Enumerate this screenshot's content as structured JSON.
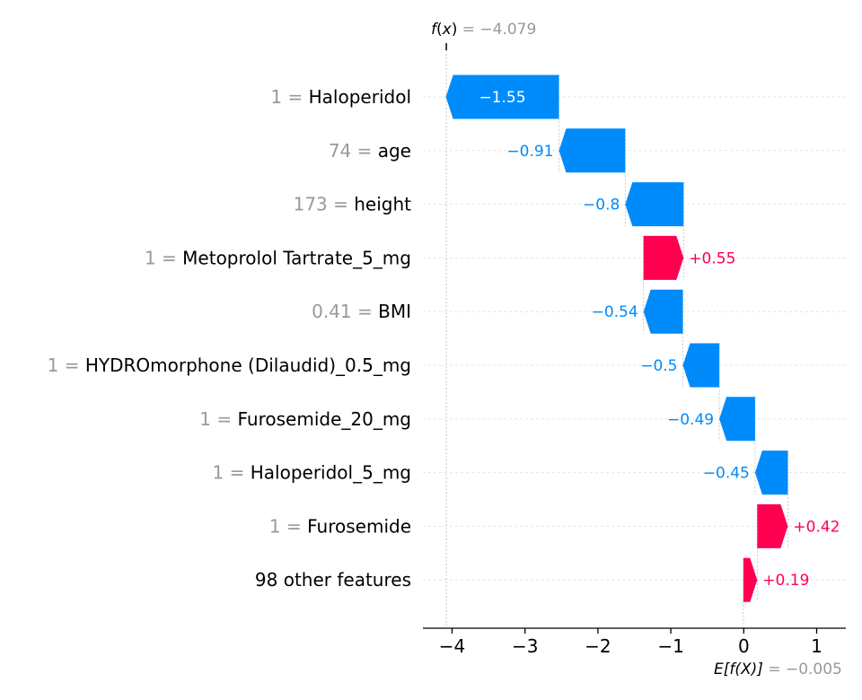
{
  "chart_data": {
    "type": "waterfall",
    "fx_label": {
      "prefix": "f",
      "arg": "x",
      "value_text": "= −4.079"
    },
    "efx_label": {
      "prefix": "E[f(X)]",
      "value_text": "= −0.005"
    },
    "base_value": -0.005,
    "fx_value": -4.079,
    "xlim": [
      -4.4,
      1.4
    ],
    "xticks": [
      -4,
      -3,
      -2,
      -1,
      0,
      1
    ],
    "xtick_labels": [
      "−4",
      "−3",
      "−2",
      "−1",
      "0",
      "1"
    ],
    "features": [
      {
        "value": "1",
        "name": "Haloperidol",
        "contribution": -1.55,
        "label": "−1.55"
      },
      {
        "value": "74",
        "name": "age",
        "contribution": -0.91,
        "label": "−0.91"
      },
      {
        "value": "173",
        "name": "height",
        "contribution": -0.8,
        "label": "−0.8"
      },
      {
        "value": "1",
        "name": "Metoprolol Tartrate_5_mg",
        "contribution": 0.55,
        "label": "+0.55"
      },
      {
        "value": "0.41",
        "name": "BMI",
        "contribution": -0.54,
        "label": "−0.54"
      },
      {
        "value": "1",
        "name": "HYDROmorphone (Dilaudid)_0.5_mg",
        "contribution": -0.5,
        "label": "−0.5"
      },
      {
        "value": "1",
        "name": "Furosemide_20_mg",
        "contribution": -0.49,
        "label": "−0.49"
      },
      {
        "value": "1",
        "name": "Haloperidol_5_mg",
        "contribution": -0.45,
        "label": "−0.45"
      },
      {
        "value": "1",
        "name": "Furosemide",
        "contribution": 0.42,
        "label": "+0.42"
      },
      {
        "value": "",
        "name": "98 other features",
        "contribution": 0.19,
        "label": "+0.19"
      }
    ],
    "colors": {
      "positive": "#ff0051",
      "negative": "#008bfb",
      "label_gray": "#999999",
      "grid": "#e5e5e5",
      "axis": "#000000"
    }
  }
}
